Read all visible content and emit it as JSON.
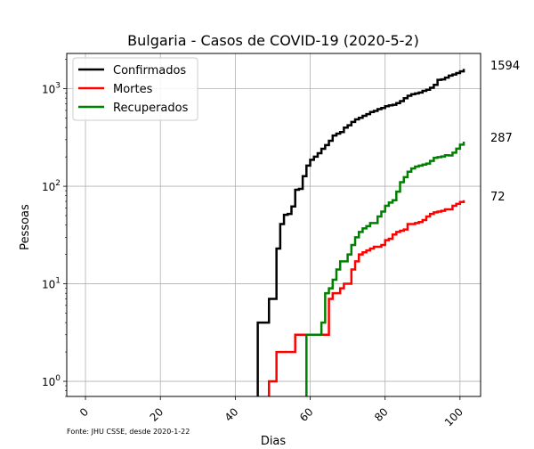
{
  "chart_data": {
    "type": "line",
    "title": "Bulgaria - Casos de COVID-19 (2020-5-2)",
    "xlabel": "Dias",
    "ylabel": "Pessoas",
    "yscale": "log",
    "xlim": [
      -5,
      105.5
    ],
    "ylim": [
      0.7,
      2300
    ],
    "grid": true,
    "legend_position": "top-left",
    "xticks": [
      0,
      20,
      40,
      60,
      80,
      100
    ],
    "xtick_labels": [
      "0",
      "20",
      "40",
      "60",
      "80",
      "100"
    ],
    "yticks": [
      1,
      10,
      100,
      1000
    ],
    "ytick_labels": [
      {
        "base": "10",
        "exp": "0"
      },
      {
        "base": "10",
        "exp": "1"
      },
      {
        "base": "10",
        "exp": "2"
      },
      {
        "base": "10",
        "exp": "3"
      }
    ],
    "source_note": "Fonte: JHU CSSE, desde 2020-1-22",
    "end_labels": [
      "1594",
      "287",
      "72"
    ],
    "series": [
      {
        "name": "Confirmados",
        "color": "#000000",
        "x": [
          46,
          46,
          48,
          49,
          50,
          51,
          52,
          53,
          54,
          55,
          56,
          57,
          58,
          59,
          60,
          61,
          62,
          63,
          64,
          65,
          66,
          67,
          68,
          69,
          70,
          71,
          72,
          73,
          74,
          75,
          76,
          77,
          78,
          79,
          80,
          81,
          82,
          83,
          84,
          85,
          86,
          87,
          88,
          89,
          90,
          91,
          92,
          93,
          94,
          95,
          96,
          97,
          98,
          99,
          100,
          101
        ],
        "y": [
          0.7,
          4,
          4,
          7,
          7,
          23,
          41,
          51,
          52,
          62,
          92,
          94,
          127,
          163,
          187,
          201,
          218,
          242,
          264,
          293,
          331,
          346,
          359,
          399,
          422,
          457,
          485,
          503,
          527,
          549,
          577,
          593,
          618,
          635,
          661,
          675,
          685,
          713,
          747,
          800,
          846,
          878,
          894,
          915,
          951,
          975,
          1024,
          1097,
          1234,
          1247,
          1300,
          1363,
          1399,
          1447,
          1506,
          1594
        ]
      },
      {
        "name": "Mortes",
        "color": "#ff0000",
        "x": [
          49,
          49,
          51,
          51,
          52,
          56,
          56,
          57,
          65,
          65,
          66,
          68,
          68,
          69,
          70,
          71,
          72,
          73,
          74,
          75,
          76,
          77,
          78,
          79,
          80,
          81,
          82,
          83,
          84,
          85,
          86,
          87,
          88,
          89,
          90,
          91,
          92,
          93,
          94,
          95,
          96,
          97,
          98,
          99,
          100,
          101
        ],
        "y": [
          0.7,
          1,
          1,
          2,
          2,
          2,
          3,
          3,
          3,
          7,
          8,
          8,
          9,
          10,
          10,
          14,
          17,
          20,
          21,
          22,
          23,
          24,
          24,
          25,
          28,
          29,
          32,
          34,
          35,
          36,
          41,
          41,
          42,
          43,
          45,
          49,
          52,
          54,
          55,
          56,
          58,
          58,
          63,
          66,
          69,
          72
        ]
      },
      {
        "name": "Recuperados",
        "color": "#008000",
        "x": [
          59,
          59,
          62,
          63,
          64,
          65,
          66,
          67,
          68,
          69,
          70,
          71,
          72,
          73,
          74,
          75,
          76,
          77,
          78,
          79,
          80,
          81,
          82,
          83,
          84,
          85,
          86,
          87,
          88,
          89,
          90,
          91,
          92,
          93,
          94,
          95,
          96,
          97,
          98,
          99,
          100,
          101
        ],
        "y": [
          0.7,
          3,
          3,
          4,
          8,
          9,
          11,
          14,
          17,
          17,
          20,
          25,
          30,
          34,
          37,
          39,
          42,
          42,
          49,
          55,
          63,
          68,
          72,
          88,
          110,
          124,
          141,
          152,
          159,
          163,
          167,
          171,
          182,
          196,
          199,
          202,
          208,
          207,
          221,
          243,
          267,
          287
        ]
      }
    ]
  }
}
